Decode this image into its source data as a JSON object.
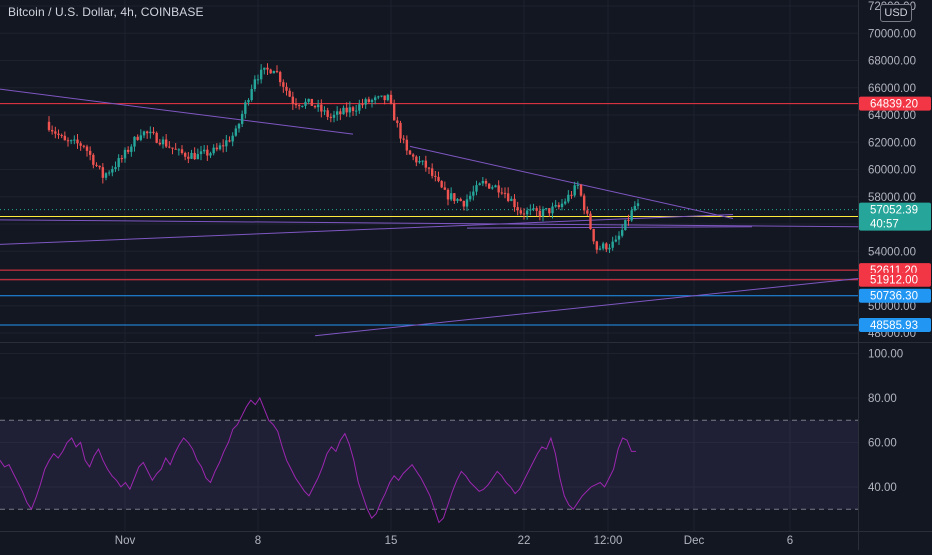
{
  "header": {
    "title": "Bitcoin / U.S. Dollar, 4h, COINBASE",
    "currency_badge": "USD"
  },
  "colors": {
    "background": "#131722",
    "grid": "#1e222d",
    "up": "#26a69a",
    "down": "#ef5350",
    "trendline": "#7e57c2",
    "support_red": "#f23645",
    "support_blue": "#2196f3",
    "yellow_line": "#ffeb3b",
    "rsi_line": "#9c27b0",
    "rsi_band": "#7e57c2"
  },
  "chart_data": [
    {
      "type": "candlestick",
      "title": "Bitcoin / U.S. Dollar, 4h, COINBASE",
      "y_ticks": [
        "72000.00",
        "70000.00",
        "68000.00",
        "66000.00",
        "64000.00",
        "62000.00",
        "60000.00",
        "58000.00",
        "56000.00",
        "54000.00",
        "52000.00",
        "50000.00",
        "48000.00"
      ],
      "ylim": [
        47500,
        72500
      ],
      "x_tick_labels": [
        "Nov",
        "8",
        "15",
        "22",
        "12:00",
        "Dec",
        "6"
      ],
      "current_price": {
        "value": 57052.39,
        "label": "57052.39",
        "countdown": "40:57"
      },
      "horizontal_levels": [
        {
          "value": 64839.2,
          "label": "64839.20",
          "color": "red"
        },
        {
          "value": 52611.2,
          "label": "52611.20",
          "color": "red"
        },
        {
          "value": 51912.0,
          "label": "51912.00",
          "color": "red"
        },
        {
          "value": 50736.3,
          "label": "50736.30",
          "color": "blue"
        },
        {
          "value": 48585.93,
          "label": "48585.93",
          "color": "blue"
        }
      ],
      "yellow_level": 56550,
      "trendlines": [
        {
          "from": [
            "start",
            65900
          ],
          "to": [
            "Nov 13",
            62600
          ]
        },
        {
          "from": [
            "Nov 16",
            61700
          ],
          "to": [
            "Dec 3",
            56400
          ]
        },
        {
          "from": [
            "start",
            56300
          ],
          "to": [
            "end",
            55800
          ]
        },
        {
          "from": [
            "start",
            54500
          ],
          "to": [
            "Dec 3",
            56700
          ]
        },
        {
          "from": [
            "Nov 19",
            55700
          ],
          "to": [
            "Dec 4",
            55800
          ]
        },
        {
          "from": [
            "Nov 11",
            47800
          ],
          "to": [
            "end",
            52000
          ]
        }
      ],
      "close_path": [
        {
          "t": "Oct 28",
          "v": 63500
        },
        {
          "t": "Oct 29",
          "v": 62000
        },
        {
          "t": "Oct 30",
          "v": 61800
        },
        {
          "t": "Oct 31",
          "v": 59500
        },
        {
          "t": "Nov 1",
          "v": 60800
        },
        {
          "t": "Nov 2",
          "v": 62800
        },
        {
          "t": "Nov 3",
          "v": 62200
        },
        {
          "t": "Nov 4",
          "v": 61200
        },
        {
          "t": "Nov 5",
          "v": 61000
        },
        {
          "t": "Nov 6",
          "v": 61400
        },
        {
          "t": "Nov 7",
          "v": 62700
        },
        {
          "t": "Nov 8",
          "v": 66800
        },
        {
          "t": "Nov 9",
          "v": 67500
        },
        {
          "t": "Nov 10",
          "v": 65000
        },
        {
          "t": "Nov 11",
          "v": 64800
        },
        {
          "t": "Nov 12",
          "v": 63800
        },
        {
          "t": "Nov 13",
          "v": 64400
        },
        {
          "t": "Nov 14",
          "v": 65000
        },
        {
          "t": "Nov 15",
          "v": 65200
        },
        {
          "t": "Nov 16",
          "v": 61200
        },
        {
          "t": "Nov 17",
          "v": 60200
        },
        {
          "t": "Nov 18",
          "v": 58200
        },
        {
          "t": "Nov 19",
          "v": 57600
        },
        {
          "t": "Nov 20",
          "v": 59000
        },
        {
          "t": "Nov 21",
          "v": 58600
        },
        {
          "t": "Nov 22",
          "v": 56900
        },
        {
          "t": "Nov 23",
          "v": 56800
        },
        {
          "t": "Nov 24",
          "v": 57200
        },
        {
          "t": "Nov 25",
          "v": 58800
        },
        {
          "t": "Nov 26",
          "v": 54200
        },
        {
          "t": "Nov 27",
          "v": 54600
        },
        {
          "t": "Nov 28",
          "v": 57300
        }
      ]
    },
    {
      "type": "line",
      "title": "RSI",
      "y_ticks": [
        "100.00",
        "80.00",
        "60.00",
        "40.00"
      ],
      "ylim": [
        22,
        102
      ],
      "bands": {
        "upper": 70,
        "lower": 30
      },
      "series": [
        {
          "values": [
            52,
            49,
            50,
            46,
            42,
            38,
            33,
            30,
            35,
            41,
            48,
            52,
            55,
            53,
            56,
            60,
            62,
            58,
            60,
            52,
            49,
            54,
            57,
            52,
            48,
            45,
            43,
            40,
            42,
            39,
            44,
            49,
            51,
            47,
            43,
            46,
            48,
            53,
            50,
            55,
            59,
            62,
            60,
            57,
            52,
            49,
            44,
            42,
            47,
            51,
            56,
            60,
            66,
            68,
            72,
            76,
            79,
            77,
            80,
            75,
            70,
            68,
            65,
            58,
            52,
            48,
            44,
            41,
            38,
            36,
            40,
            44,
            49,
            55,
            58,
            56,
            61,
            64,
            59,
            52,
            42,
            36,
            30,
            26,
            28,
            33,
            37,
            42,
            45,
            43,
            46,
            48,
            50,
            47,
            44,
            40,
            36,
            30,
            24,
            26,
            32,
            38,
            43,
            47,
            45,
            42,
            40,
            38,
            39,
            41,
            44,
            47,
            45,
            42,
            40,
            37,
            39,
            43,
            47,
            51,
            55,
            58,
            57,
            62,
            55,
            44,
            36,
            32,
            30,
            33,
            36,
            38,
            40,
            41,
            42,
            40,
            44,
            48,
            57,
            62,
            61,
            56,
            56
          ]
        }
      ]
    }
  ]
}
